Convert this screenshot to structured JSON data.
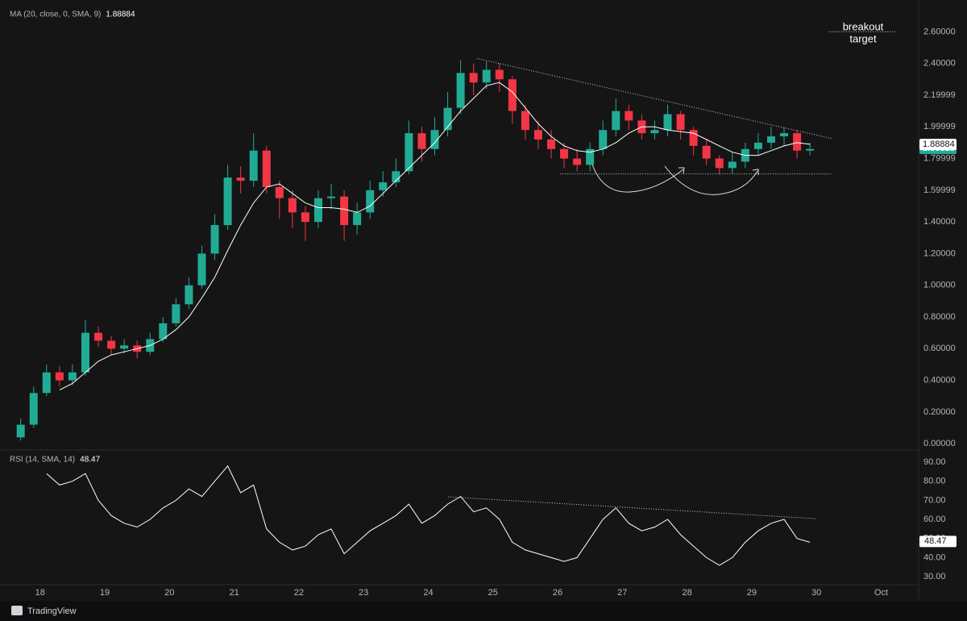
{
  "chart_data": [
    {
      "type": "candlestick",
      "indicator": {
        "name": "MA (20, close, 0, SMA, 9)",
        "value": 1.88884
      },
      "last_price": 1.86319,
      "x": [
        17.7,
        17.9,
        18.1,
        18.3,
        18.5,
        18.7,
        18.9,
        19.1,
        19.3,
        19.5,
        19.7,
        19.9,
        20.1,
        20.3,
        20.5,
        20.7,
        20.9,
        21.1,
        21.3,
        21.5,
        21.7,
        21.9,
        22.1,
        22.3,
        22.5,
        22.7,
        22.9,
        23.1,
        23.3,
        23.5,
        23.7,
        23.9,
        24.1,
        24.3,
        24.5,
        24.7,
        24.9,
        25.1,
        25.3,
        25.5,
        25.7,
        25.9,
        26.1,
        26.3,
        26.5,
        26.7,
        26.9,
        27.1,
        27.3,
        27.5,
        27.7,
        27.9,
        28.1,
        28.3,
        28.5,
        28.7,
        28.9,
        29.1,
        29.3,
        29.5,
        29.7,
        29.9
      ],
      "open": [
        0.04,
        0.12,
        0.32,
        0.45,
        0.4,
        0.45,
        0.7,
        0.65,
        0.6,
        0.62,
        0.58,
        0.66,
        0.76,
        0.88,
        1.0,
        1.2,
        1.38,
        1.68,
        1.66,
        1.85,
        1.62,
        1.55,
        1.46,
        1.4,
        1.55,
        1.56,
        1.38,
        1.46,
        1.6,
        1.65,
        1.72,
        1.96,
        1.86,
        1.98,
        2.12,
        2.34,
        2.28,
        2.36,
        2.3,
        2.1,
        1.98,
        1.92,
        1.86,
        1.8,
        1.76,
        1.86,
        1.98,
        2.1,
        2.04,
        1.96,
        1.98,
        2.08,
        1.98,
        1.88,
        1.8,
        1.74,
        1.78,
        1.86,
        1.9,
        1.94,
        1.96,
        1.85
      ],
      "high": [
        0.16,
        0.36,
        0.5,
        0.49,
        0.5,
        0.78,
        0.74,
        0.68,
        0.66,
        0.65,
        0.7,
        0.8,
        0.92,
        1.05,
        1.25,
        1.45,
        1.76,
        1.75,
        1.96,
        1.88,
        1.66,
        1.6,
        1.5,
        1.6,
        1.64,
        1.6,
        1.52,
        1.66,
        1.72,
        1.8,
        2.04,
        2.0,
        2.06,
        2.22,
        2.42,
        2.4,
        2.42,
        2.4,
        2.32,
        2.14,
        2.04,
        1.98,
        1.9,
        1.86,
        1.9,
        2.04,
        2.18,
        2.14,
        2.08,
        2.04,
        2.14,
        2.1,
        2.0,
        1.92,
        1.82,
        1.84,
        1.9,
        1.96,
        2.0,
        2.0,
        1.98,
        1.9
      ],
      "low": [
        0.02,
        0.1,
        0.3,
        0.36,
        0.37,
        0.43,
        0.61,
        0.56,
        0.57,
        0.54,
        0.56,
        0.64,
        0.74,
        0.85,
        0.98,
        1.16,
        1.35,
        1.58,
        1.62,
        1.58,
        1.42,
        1.36,
        1.28,
        1.36,
        1.48,
        1.28,
        1.32,
        1.42,
        1.56,
        1.62,
        1.7,
        1.78,
        1.82,
        1.94,
        2.08,
        2.2,
        2.24,
        2.22,
        2.02,
        1.92,
        1.86,
        1.8,
        1.74,
        1.72,
        1.72,
        1.82,
        1.94,
        1.98,
        1.92,
        1.92,
        1.94,
        1.92,
        1.82,
        1.76,
        1.7,
        1.7,
        1.74,
        1.82,
        1.86,
        1.88,
        1.8,
        1.82
      ],
      "close": [
        0.12,
        0.32,
        0.45,
        0.4,
        0.45,
        0.7,
        0.65,
        0.6,
        0.62,
        0.58,
        0.66,
        0.76,
        0.88,
        1.0,
        1.2,
        1.38,
        1.68,
        1.66,
        1.85,
        1.62,
        1.55,
        1.46,
        1.4,
        1.55,
        1.56,
        1.38,
        1.46,
        1.6,
        1.65,
        1.72,
        1.96,
        1.86,
        1.98,
        2.12,
        2.34,
        2.28,
        2.36,
        2.3,
        2.1,
        1.98,
        1.92,
        1.86,
        1.8,
        1.76,
        1.86,
        1.98,
        2.1,
        2.04,
        1.96,
        1.98,
        2.08,
        1.98,
        1.88,
        1.8,
        1.74,
        1.78,
        1.86,
        1.9,
        1.94,
        1.96,
        1.85,
        1.86
      ],
      "up_color": "#22ab94",
      "down_color": "#f23645",
      "series": [
        {
          "color": "#ffffff",
          "values": [
            null,
            null,
            null,
            0.34,
            0.38,
            0.45,
            0.52,
            0.56,
            0.58,
            0.6,
            0.62,
            0.66,
            0.72,
            0.8,
            0.92,
            1.05,
            1.22,
            1.38,
            1.52,
            1.62,
            1.64,
            1.58,
            1.52,
            1.49,
            1.49,
            1.48,
            1.46,
            1.5,
            1.58,
            1.66,
            1.74,
            1.82,
            1.9,
            2.0,
            2.1,
            2.18,
            2.26,
            2.28,
            2.22,
            2.12,
            2.02,
            1.94,
            1.88,
            1.85,
            1.84,
            1.86,
            1.9,
            1.96,
            2.0,
            2.0,
            1.98,
            1.97,
            1.96,
            1.92,
            1.88,
            1.84,
            1.82,
            1.82,
            1.85,
            1.88,
            1.9,
            1.89
          ]
        }
      ],
      "trendlines": [
        {
          "x": [
            24.75,
            30.23
          ],
          "y": [
            2.432,
            1.927
          ]
        },
        {
          "x": [
            26.04,
            30.23
          ],
          "y": [
            1.703,
            1.703
          ]
        },
        {
          "x": [
            30.2,
            31.23
          ],
          "y": [
            2.6,
            2.6
          ]
        }
      ],
      "annotation": [
        "breakout",
        "target"
      ],
      "xlim": [
        17.38,
        31.58
      ],
      "ylim": [
        -0.04,
        2.76
      ],
      "yticks": [
        {
          "value": 2.6,
          "label": "2.60000"
        },
        {
          "value": 2.4,
          "label": "2.40000"
        },
        {
          "value": 2.19999,
          "label": "2.19999"
        },
        {
          "value": 1.99999,
          "label": "1.99999"
        },
        {
          "value": 1.79999,
          "label": "1.79999"
        },
        {
          "value": 1.59999,
          "label": "1.59999"
        },
        {
          "value": 1.4,
          "label": "1.40000"
        },
        {
          "value": 1.2,
          "label": "1.20000"
        },
        {
          "value": 1,
          "label": "1.00000"
        },
        {
          "value": 0.8,
          "label": "0.80000"
        },
        {
          "value": 0.6,
          "label": "0.60000"
        },
        {
          "value": 0.4,
          "label": "0.40000"
        },
        {
          "value": 0.2,
          "label": "0.20000"
        },
        {
          "value": 0,
          "label": "0.00000"
        }
      ],
      "grid": false
    },
    {
      "type": "line",
      "indicator": {
        "name": "RSI (14, SMA, 14)",
        "value": 48.47
      },
      "x": [
        17.7,
        17.9,
        18.1,
        18.3,
        18.5,
        18.7,
        18.9,
        19.1,
        19.3,
        19.5,
        19.7,
        19.9,
        20.1,
        20.3,
        20.5,
        20.7,
        20.9,
        21.1,
        21.3,
        21.5,
        21.7,
        21.9,
        22.1,
        22.3,
        22.5,
        22.7,
        22.9,
        23.1,
        23.3,
        23.5,
        23.7,
        23.9,
        24.1,
        24.3,
        24.5,
        24.7,
        24.9,
        25.1,
        25.3,
        25.5,
        25.7,
        25.9,
        26.1,
        26.3,
        26.5,
        26.7,
        26.9,
        27.1,
        27.3,
        27.5,
        27.7,
        27.9,
        28.1,
        28.3,
        28.5,
        28.7,
        28.9,
        29.1,
        29.3,
        29.5,
        29.7,
        29.9
      ],
      "series": [
        {
          "color": "#ffffff",
          "values": [
            null,
            null,
            84,
            78,
            80,
            84,
            70,
            62,
            58,
            56,
            60,
            66,
            70,
            76,
            72,
            80,
            88,
            74,
            78,
            55,
            48,
            44,
            46,
            52,
            55,
            42,
            48,
            54,
            58,
            62,
            68,
            58,
            62,
            68,
            72,
            64,
            66,
            60,
            48,
            44,
            42,
            40,
            38,
            40,
            50,
            60,
            66,
            58,
            54,
            56,
            60,
            52,
            46,
            40,
            36,
            40,
            48,
            54,
            58,
            60,
            50,
            48
          ]
        }
      ],
      "trendlines": [
        {
          "x": [
            24.31,
            29.99
          ],
          "y": [
            71.8,
            60.4
          ]
        }
      ],
      "xlim": [
        17.38,
        31.58
      ],
      "ylim": [
        25.8,
        95.5
      ],
      "yticks": [
        {
          "value": 90,
          "label": "90.00"
        },
        {
          "value": 80,
          "label": "80.00"
        },
        {
          "value": 70,
          "label": "70.00"
        },
        {
          "value": 60,
          "label": "60.00"
        },
        {
          "value": 50,
          "label": "50.00"
        },
        {
          "value": 40,
          "label": "40.00"
        },
        {
          "value": 30,
          "label": "30.00"
        }
      ],
      "xticks": [
        18,
        19,
        20,
        21,
        22,
        23,
        24,
        25,
        26,
        27,
        28,
        29,
        30,
        {
          "value": 31,
          "label": "Oct"
        }
      ],
      "grid": false
    }
  ],
  "footer": {
    "brand": "TradingView"
  }
}
